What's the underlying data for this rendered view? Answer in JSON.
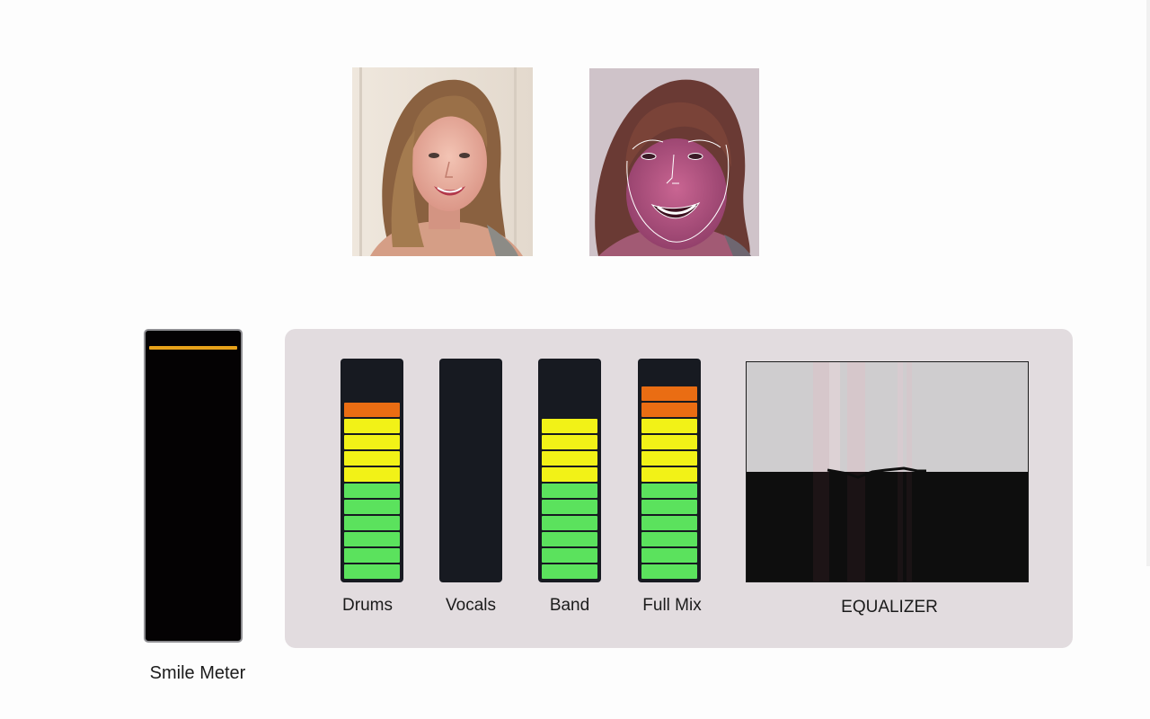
{
  "smile_meter": {
    "label": "Smile Meter",
    "level": 0.95,
    "indicator_color": "#e8a21a"
  },
  "meters": [
    {
      "label": "Drums",
      "segments": [
        "green",
        "green",
        "green",
        "green",
        "green",
        "green",
        "yellow",
        "yellow",
        "yellow",
        "yellow",
        "orange"
      ]
    },
    {
      "label": "Vocals",
      "segments": []
    },
    {
      "label": "Band",
      "segments": [
        "green",
        "green",
        "green",
        "green",
        "green",
        "green",
        "yellow",
        "yellow",
        "yellow",
        "yellow"
      ]
    },
    {
      "label": "Full Mix",
      "segments": [
        "green",
        "green",
        "green",
        "green",
        "green",
        "green",
        "yellow",
        "yellow",
        "yellow",
        "yellow",
        "orange",
        "orange"
      ]
    }
  ],
  "equalizer": {
    "label": "EQUALIZER"
  },
  "colors": {
    "segment_green": "#5be25d",
    "segment_yellow": "#f2f217",
    "segment_orange": "#ea6d13",
    "meter_background": "#171a21",
    "panel_background": "#e2dcdf"
  }
}
